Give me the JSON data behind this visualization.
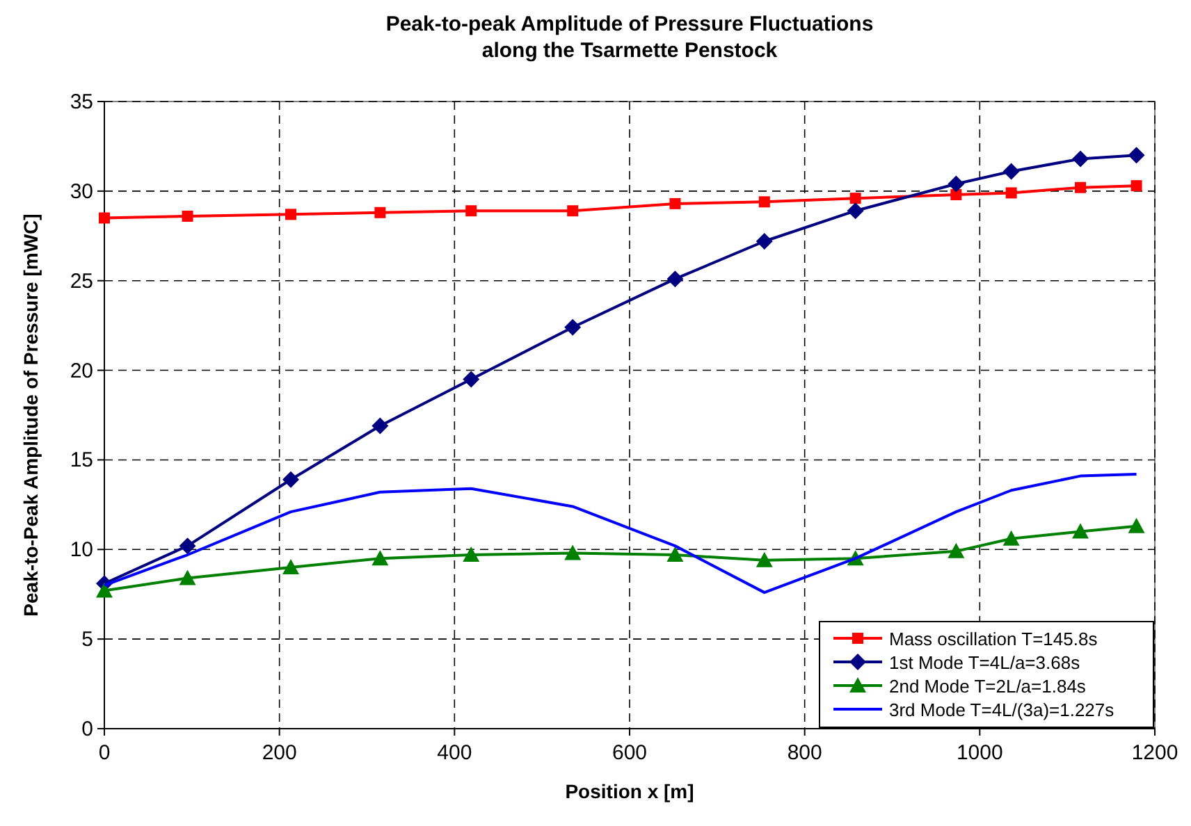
{
  "chart_data": {
    "type": "line",
    "title": "Peak-to-peak Amplitude of Pressure Fluctuations\nalong the Tsarmette Penstock",
    "xlabel": "Position x [m]",
    "ylabel": "Peak-to-Peak Amplitude of Pressure [mWC]",
    "x": [
      0,
      95,
      213,
      315,
      419,
      535,
      652,
      754,
      858,
      973,
      1036,
      1115,
      1179
    ],
    "xlim": [
      0,
      1200
    ],
    "xticks": [
      0,
      200,
      400,
      600,
      800,
      1000,
      1200
    ],
    "ylim": [
      0,
      35
    ],
    "yticks": [
      0,
      5,
      10,
      15,
      20,
      25,
      30,
      35
    ],
    "grid": true,
    "legend": "bottom right",
    "series": [
      {
        "name": "Mass oscillation T=145.8s",
        "color": "#ff0000",
        "marker": "square",
        "values": [
          28.5,
          28.6,
          28.7,
          28.8,
          28.9,
          28.9,
          29.3,
          29.4,
          29.6,
          29.8,
          29.9,
          30.2,
          30.3
        ]
      },
      {
        "name": "1st Mode T=4L/a=3.68s",
        "color": "#000080",
        "marker": "diamond",
        "values": [
          8.1,
          10.2,
          13.9,
          16.9,
          19.5,
          22.4,
          25.1,
          27.2,
          28.9,
          30.4,
          31.1,
          31.8,
          32.0
        ]
      },
      {
        "name": "2nd Mode T=2L/a=1.84s",
        "color": "#008000",
        "marker": "triangle",
        "values": [
          7.7,
          8.4,
          9.0,
          9.5,
          9.7,
          9.8,
          9.7,
          9.4,
          9.5,
          9.9,
          10.6,
          11.0,
          11.3
        ]
      },
      {
        "name": "3rd Mode T=4L/(3a)=1.227s",
        "color": "#0000ff",
        "marker": "none",
        "values": [
          8.0,
          9.7,
          12.1,
          13.2,
          13.4,
          12.4,
          10.2,
          7.6,
          9.5,
          12.1,
          13.3,
          14.1,
          14.2
        ]
      }
    ]
  }
}
